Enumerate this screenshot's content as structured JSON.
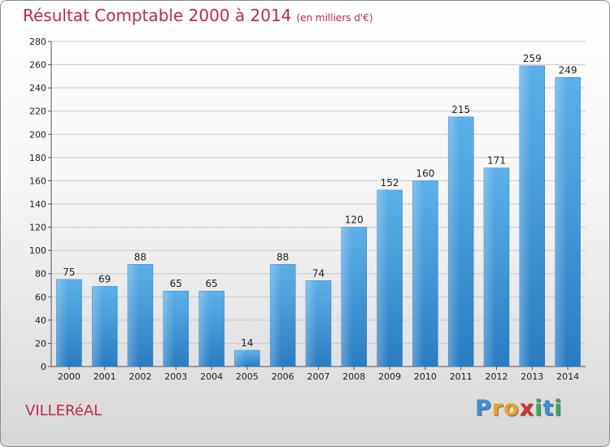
{
  "header": {
    "title": "Résultat Comptable 2000 à 2014",
    "subtitle": "(en milliers d'€)"
  },
  "commune": "VILLERéAL",
  "logo": {
    "letters": [
      "P",
      "r",
      "o",
      "x",
      "i",
      "t",
      "i"
    ],
    "colors": [
      "#3a8fd9",
      "#f0a020",
      "#f0a020",
      "#d93030",
      "#3aa85a",
      "#3a8fd9",
      "#3aa85a"
    ]
  },
  "chart_data": {
    "type": "bar",
    "title": "Résultat Comptable 2000 à 2014",
    "subtitle": "(en milliers d'€)",
    "categories": [
      "2000",
      "2001",
      "2002",
      "2003",
      "2004",
      "2005",
      "2006",
      "2007",
      "2008",
      "2009",
      "2010",
      "2011",
      "2012",
      "2013",
      "2014"
    ],
    "values": [
      75,
      69,
      88,
      65,
      65,
      14,
      88,
      74,
      120,
      152,
      160,
      215,
      171,
      259,
      249
    ],
    "ylim": [
      0,
      280
    ],
    "yticks": [
      0,
      20,
      40,
      60,
      80,
      100,
      120,
      140,
      160,
      180,
      200,
      220,
      240,
      260,
      280
    ],
    "grid": true,
    "bar_color": "#4a9fe0"
  }
}
